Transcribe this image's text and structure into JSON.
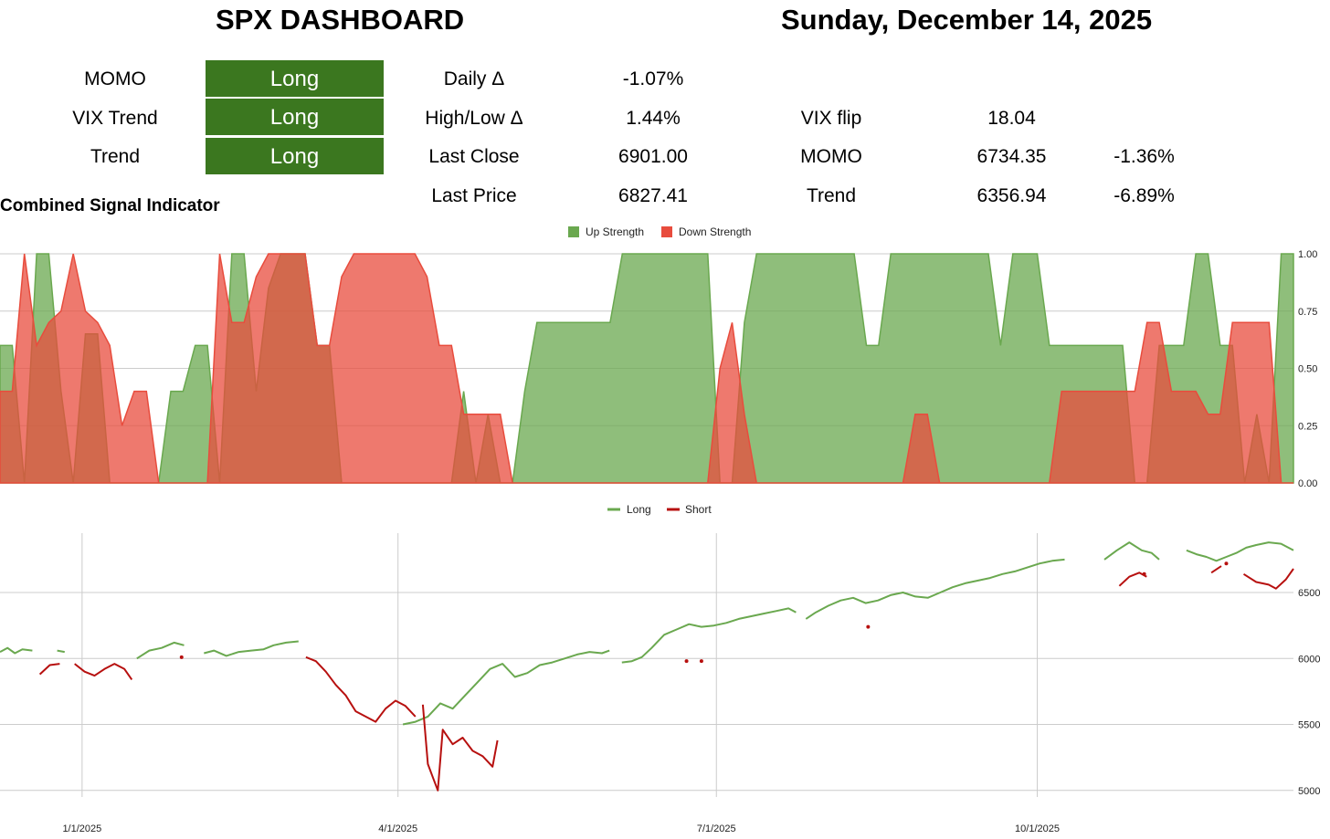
{
  "header": {
    "title": "SPX DASHBOARD",
    "date": "Sunday, December 14, 2025"
  },
  "signals": [
    {
      "label": "MOMO",
      "value": "Long"
    },
    {
      "label": "VIX Trend",
      "value": "Long"
    },
    {
      "label": "Trend",
      "value": "Long"
    }
  ],
  "stats": [
    {
      "label": "Daily Δ",
      "value": "-1.07%"
    },
    {
      "label": "High/Low Δ",
      "value": "1.44%"
    },
    {
      "label": "Last Close",
      "value": "6901.00"
    },
    {
      "label": "Last Price",
      "value": "6827.41"
    }
  ],
  "levels": [
    {
      "label": "VIX flip",
      "value": "18.04",
      "pct": ""
    },
    {
      "label": "MOMO",
      "value": "6734.35",
      "pct": "-1.36%"
    },
    {
      "label": "Trend",
      "value": "6356.94",
      "pct": "-6.89%"
    }
  ],
  "colors": {
    "signal_bg": "#3b771f",
    "up": "#6aa84f",
    "down": "#e84c3d",
    "long": "#6aa84f",
    "short": "#b7100f"
  },
  "chart_data": [
    {
      "type": "area",
      "title": "Combined Signal Indicator",
      "legend": "top-center",
      "ylim": [
        0,
        1
      ],
      "yticks": [
        "0.00",
        "0.25",
        "0.50",
        "0.75",
        "1.00"
      ],
      "series": [
        {
          "name": "Up Strength",
          "color": "#6aa84f",
          "values": [
            0.6,
            0.6,
            0,
            1,
            1,
            0.4,
            0,
            0.65,
            0.65,
            0,
            0,
            0,
            0,
            0,
            0.4,
            0.4,
            0.6,
            0.6,
            0,
            1,
            1,
            0.4,
            0.85,
            1,
            1,
            1,
            0.6,
            0.6,
            0,
            0,
            0,
            0,
            0,
            0,
            0,
            0,
            0,
            0,
            0.4,
            0,
            0.3,
            0,
            0,
            0.4,
            0.7,
            0.7,
            0.7,
            0.7,
            0.7,
            0.7,
            0.7,
            1,
            1,
            1,
            1,
            1,
            1,
            1,
            1,
            0,
            0,
            0.7,
            1,
            1,
            1,
            1,
            1,
            1,
            1,
            1,
            1,
            0.6,
            0.6,
            1,
            1,
            1,
            1,
            1,
            1,
            1,
            1,
            1,
            0.6,
            1,
            1,
            1,
            0.6,
            0.6,
            0.6,
            0.6,
            0.6,
            0.6,
            0.6,
            0,
            0,
            0.6,
            0.6,
            0.6,
            1,
            1,
            0.6,
            0.6,
            0,
            0.3,
            0,
            1,
            1
          ]
        },
        {
          "name": "Down Strength",
          "color": "#e84c3d",
          "values": [
            0.4,
            0.4,
            1,
            0.6,
            0.7,
            0.75,
            1,
            0.75,
            0.7,
            0.6,
            0.25,
            0.4,
            0.4,
            0,
            0,
            0,
            0,
            0,
            1,
            0.7,
            0.7,
            0.9,
            1,
            1,
            1,
            1,
            0.6,
            0.6,
            0.9,
            1,
            1,
            1,
            1,
            1,
            1,
            0.9,
            0.6,
            0.6,
            0.3,
            0.3,
            0.3,
            0.3,
            0,
            0,
            0,
            0,
            0,
            0,
            0,
            0,
            0,
            0,
            0,
            0,
            0,
            0,
            0,
            0,
            0,
            0.5,
            0.7,
            0.3,
            0,
            0,
            0,
            0,
            0,
            0,
            0,
            0,
            0,
            0,
            0,
            0,
            0,
            0.3,
            0.3,
            0,
            0,
            0,
            0,
            0,
            0,
            0,
            0,
            0,
            0,
            0.4,
            0.4,
            0.4,
            0.4,
            0.4,
            0.4,
            0.4,
            0.7,
            0.7,
            0.4,
            0.4,
            0.4,
            0.3,
            0.3,
            0.7,
            0.7,
            0.7,
            0.7,
            0,
            0
          ]
        }
      ]
    },
    {
      "type": "line",
      "legend": "top-center",
      "x": [
        "1/1/2025",
        "4/1/2025",
        "7/1/2025",
        "10/1/2025"
      ],
      "ylim": [
        4950,
        6950
      ],
      "yticks": [
        "5000",
        "5500",
        "6000",
        "6500"
      ],
      "series": [
        {
          "name": "Long",
          "color": "#6aa84f",
          "segments": [
            [
              [
                0,
                6050
              ],
              [
                3,
                6080
              ],
              [
                6,
                6040
              ],
              [
                9,
                6070
              ],
              [
                13,
                6060
              ]
            ],
            [
              [
                23,
                6060
              ],
              [
                26,
                6050
              ]
            ],
            [
              [
                55,
                6000
              ],
              [
                60,
                6060
              ],
              [
                65,
                6080
              ],
              [
                70,
                6120
              ],
              [
                74,
                6100
              ]
            ],
            [
              [
                82,
                6040
              ],
              [
                86,
                6060
              ],
              [
                91,
                6020
              ],
              [
                96,
                6050
              ],
              [
                101,
                6060
              ],
              [
                106,
                6070
              ],
              [
                110,
                6100
              ],
              [
                115,
                6120
              ],
              [
                120,
                6130
              ]
            ],
            [
              [
                162,
                5500
              ],
              [
                167,
                5520
              ],
              [
                172,
                5560
              ],
              [
                177,
                5660
              ],
              [
                182,
                5620
              ],
              [
                187,
                5720
              ],
              [
                192,
                5820
              ],
              [
                197,
                5920
              ],
              [
                202,
                5960
              ],
              [
                207,
                5860
              ],
              [
                212,
                5890
              ],
              [
                217,
                5950
              ],
              [
                222,
                5970
              ],
              [
                227,
                6000
              ],
              [
                232,
                6030
              ],
              [
                237,
                6050
              ],
              [
                242,
                6040
              ],
              [
                245,
                6060
              ]
            ],
            [
              [
                250,
                5970
              ],
              [
                254,
                5980
              ],
              [
                258,
                6010
              ],
              [
                262,
                6080
              ],
              [
                267,
                6180
              ],
              [
                272,
                6220
              ],
              [
                277,
                6260
              ],
              [
                282,
                6240
              ],
              [
                287,
                6250
              ],
              [
                292,
                6270
              ],
              [
                297,
                6300
              ],
              [
                302,
                6320
              ],
              [
                307,
                6340
              ],
              [
                312,
                6360
              ],
              [
                317,
                6380
              ],
              [
                320,
                6350
              ]
            ],
            [
              [
                324,
                6300
              ],
              [
                328,
                6350
              ],
              [
                333,
                6400
              ],
              [
                338,
                6440
              ],
              [
                343,
                6460
              ],
              [
                348,
                6420
              ],
              [
                353,
                6440
              ],
              [
                358,
                6480
              ],
              [
                363,
                6500
              ],
              [
                368,
                6470
              ],
              [
                373,
                6460
              ],
              [
                378,
                6500
              ],
              [
                383,
                6540
              ],
              [
                388,
                6570
              ],
              [
                393,
                6590
              ],
              [
                398,
                6610
              ],
              [
                403,
                6640
              ],
              [
                408,
                6660
              ],
              [
                413,
                6690
              ],
              [
                418,
                6720
              ],
              [
                423,
                6740
              ],
              [
                428,
                6750
              ]
            ],
            [
              [
                444,
                6750
              ],
              [
                449,
                6820
              ],
              [
                454,
                6880
              ],
              [
                459,
                6820
              ],
              [
                463,
                6800
              ],
              [
                466,
                6750
              ]
            ],
            [
              [
                477,
                6820
              ],
              [
                481,
                6790
              ],
              [
                485,
                6770
              ],
              [
                489,
                6740
              ],
              [
                493,
                6770
              ],
              [
                497,
                6800
              ],
              [
                501,
                6840
              ],
              [
                505,
                6860
              ],
              [
                510,
                6880
              ],
              [
                515,
                6870
              ],
              [
                520,
                6820
              ]
            ]
          ]
        },
        {
          "name": "Short",
          "color": "#b7100f",
          "segments": [
            [
              [
                16,
                5880
              ],
              [
                20,
                5950
              ],
              [
                24,
                5960
              ]
            ],
            [
              [
                30,
                5960
              ],
              [
                34,
                5900
              ],
              [
                38,
                5870
              ],
              [
                42,
                5920
              ],
              [
                46,
                5960
              ],
              [
                50,
                5920
              ],
              [
                53,
                5840
              ]
            ],
            [
              [
                123,
                6010
              ],
              [
                127,
                5980
              ],
              [
                131,
                5900
              ],
              [
                135,
                5800
              ],
              [
                139,
                5720
              ],
              [
                143,
                5600
              ],
              [
                147,
                5560
              ],
              [
                151,
                5520
              ],
              [
                155,
                5620
              ],
              [
                159,
                5680
              ],
              [
                163,
                5640
              ],
              [
                167,
                5560
              ]
            ],
            [
              [
                170,
                5650
              ],
              [
                172,
                5200
              ],
              [
                174,
                5100
              ],
              [
                176,
                5000
              ],
              [
                178,
                5460
              ],
              [
                182,
                5350
              ],
              [
                186,
                5400
              ],
              [
                190,
                5300
              ],
              [
                194,
                5260
              ],
              [
                198,
                5180
              ],
              [
                200,
                5380
              ]
            ],
            [
              [
                450,
                6550
              ],
              [
                454,
                6620
              ],
              [
                458,
                6650
              ],
              [
                461,
                6620
              ]
            ],
            [
              [
                487,
                6650
              ],
              [
                491,
                6700
              ]
            ],
            [
              [
                500,
                6640
              ],
              [
                505,
                6580
              ],
              [
                510,
                6560
              ],
              [
                513,
                6530
              ],
              [
                517,
                6600
              ],
              [
                520,
                6680
              ]
            ]
          ],
          "points": [
            [
              73,
              6010
            ],
            [
              276,
              5980
            ],
            [
              282,
              5980
            ],
            [
              349,
              6240
            ],
            [
              460,
              6640
            ],
            [
              493,
              6720
            ]
          ]
        }
      ]
    }
  ]
}
